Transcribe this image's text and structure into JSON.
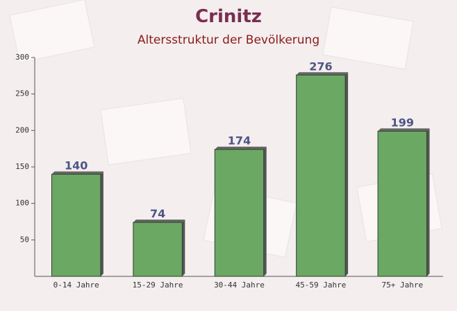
{
  "chart_data": {
    "type": "bar",
    "title": "Crinitz",
    "subtitle": "Altersstruktur der Bevölkerung",
    "categories": [
      "0-14 Jahre",
      "15-29 Jahre",
      "30-44 Jahre",
      "45-59 Jahre",
      "75+ Jahre"
    ],
    "values": [
      140,
      74,
      174,
      276,
      199
    ],
    "color": "#6aa863",
    "ylim": [
      0,
      300
    ],
    "yticks": [
      50,
      100,
      150,
      200,
      250,
      300
    ],
    "grid": false
  }
}
